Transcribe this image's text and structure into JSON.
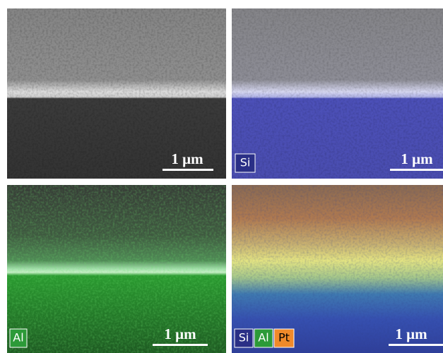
{
  "panels": [
    {
      "scale_bar": "1 μm"
    },
    {
      "labels": [
        "Si"
      ],
      "scale_bar": "1 μm"
    },
    {
      "labels": [
        "Al"
      ],
      "scale_bar": "1 μm"
    },
    {
      "labels": [
        "Si",
        "Al",
        "Pt"
      ],
      "scale_bar": "1 μm"
    }
  ]
}
